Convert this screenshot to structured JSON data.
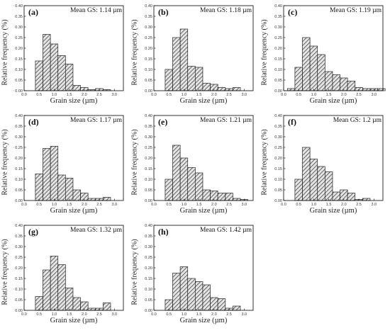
{
  "figure": {
    "ylabel": "Relative frequency (%)",
    "xlabel": "Grain size (µm)"
  },
  "colors": {
    "bar_fill": "#e4e4e4",
    "hatch": "#444444",
    "axis": "#000000"
  },
  "chart_data": [
    {
      "type": "bar",
      "panel": "(a)",
      "title": "Mean GS: 1.14 µm",
      "xlabel": "Grain size (µm)",
      "ylabel": "Relative frequency (%)",
      "x": [
        0.5,
        0.75,
        1.0,
        1.25,
        1.5,
        1.75,
        2.0,
        2.25,
        2.5,
        2.75,
        3.0,
        3.25
      ],
      "values": [
        0.14,
        0.265,
        0.22,
        0.165,
        0.125,
        0.025,
        0.015,
        0.005,
        0.01,
        0.005,
        0.0,
        0.0
      ],
      "xlim": [
        0,
        3.3
      ],
      "ylim": [
        0,
        0.4
      ],
      "xticks": [
        "0.0",
        "0.5",
        "1.0",
        "1.5",
        "2.0",
        "2.5",
        "3.0"
      ],
      "yticks": [
        "0.00",
        "0.05",
        "0.10",
        "0.15",
        "0.20",
        "0.25",
        "0.30",
        "0.35",
        "0.40"
      ]
    },
    {
      "type": "bar",
      "panel": "(b)",
      "title": "Mean GS: 1.18 µm",
      "xlabel": "Grain size (µm)",
      "ylabel": "Relative frequency (%)",
      "x": [
        0.5,
        0.75,
        1.0,
        1.25,
        1.5,
        1.75,
        2.0,
        2.25,
        2.5,
        2.75,
        3.0,
        3.25
      ],
      "values": [
        0.1,
        0.25,
        0.29,
        0.115,
        0.11,
        0.035,
        0.03,
        0.015,
        0.01,
        0.015,
        0.0,
        0.0
      ],
      "xlim": [
        0,
        3.3
      ],
      "ylim": [
        0,
        0.4
      ],
      "xticks": [
        "0.0",
        "0.5",
        "1.0",
        "1.5",
        "2.0",
        "2.5",
        "3.0"
      ],
      "yticks": [
        "0.00",
        "0.05",
        "0.10",
        "0.15",
        "0.20",
        "0.25",
        "0.30",
        "0.35",
        "0.40"
      ]
    },
    {
      "type": "bar",
      "panel": "(c)",
      "title": "Mean GS: 1.19 µm",
      "xlabel": "Grain size (µm)",
      "ylabel": "Relative frequency (%)",
      "x": [
        0.25,
        0.5,
        0.75,
        1.0,
        1.25,
        1.5,
        1.75,
        2.0,
        2.25,
        2.5,
        2.75,
        3.0,
        3.25
      ],
      "values": [
        0.01,
        0.11,
        0.25,
        0.21,
        0.17,
        0.09,
        0.075,
        0.06,
        0.045,
        0.015,
        0.01,
        0.01,
        0.01
      ],
      "xlim": [
        0,
        3.3
      ],
      "ylim": [
        0,
        0.4
      ],
      "xticks": [
        "0.0",
        "0.5",
        "1.0",
        "1.5",
        "2.0",
        "2.5",
        "3.0"
      ],
      "yticks": [
        "0.00",
        "0.05",
        "0.10",
        "0.15",
        "0.20",
        "0.25",
        "0.30",
        "0.35",
        "0.40"
      ]
    },
    {
      "type": "bar",
      "panel": "(d)",
      "title": "Mean GS: 1.17 µm",
      "xlabel": "Grain size (µm)",
      "ylabel": "Relative frequency (%)",
      "x": [
        0.5,
        0.75,
        1.0,
        1.25,
        1.5,
        1.75,
        2.0,
        2.25,
        2.5,
        2.75,
        3.0,
        3.25
      ],
      "values": [
        0.125,
        0.245,
        0.255,
        0.12,
        0.105,
        0.05,
        0.035,
        0.01,
        0.01,
        0.015,
        0.0,
        0.0
      ],
      "xlim": [
        0,
        3.3
      ],
      "ylim": [
        0,
        0.4
      ],
      "xticks": [
        "0.0",
        "0.5",
        "1.0",
        "1.5",
        "2.0",
        "2.5",
        "3.0"
      ],
      "yticks": [
        "0.00",
        "0.05",
        "0.10",
        "0.15",
        "0.20",
        "0.25",
        "0.30",
        "0.35",
        "0.40"
      ]
    },
    {
      "type": "bar",
      "panel": "(e)",
      "title": "Mean GS: 1.21 µm",
      "xlabel": "Grain size (µm)",
      "ylabel": "Relative frequency (%)",
      "x": [
        0.5,
        0.75,
        1.0,
        1.25,
        1.5,
        1.75,
        2.0,
        2.25,
        2.5,
        2.75,
        3.0,
        3.25
      ],
      "values": [
        0.1,
        0.26,
        0.2,
        0.155,
        0.13,
        0.05,
        0.045,
        0.035,
        0.035,
        0.01,
        0.005,
        0.0
      ],
      "xlim": [
        0,
        3.3
      ],
      "ylim": [
        0,
        0.4
      ],
      "xticks": [
        "0.0",
        "0.5",
        "1.0",
        "1.5",
        "2.0",
        "2.5",
        "3.0"
      ],
      "yticks": [
        "0.00",
        "0.05",
        "0.10",
        "0.15",
        "0.20",
        "0.25",
        "0.30",
        "0.35",
        "0.40"
      ]
    },
    {
      "type": "bar",
      "panel": "(f)",
      "title": "Mean GS: 1.2 µm",
      "xlabel": "Grain size (µm)",
      "ylabel": "Relative frequency (%)",
      "x": [
        0.5,
        0.75,
        1.0,
        1.25,
        1.5,
        1.75,
        2.0,
        2.25,
        2.5,
        2.75,
        3.0,
        3.25
      ],
      "values": [
        0.1,
        0.25,
        0.195,
        0.16,
        0.135,
        0.04,
        0.05,
        0.035,
        0.005,
        0.01,
        0.0,
        0.0
      ],
      "xlim": [
        0,
        3.3
      ],
      "ylim": [
        0,
        0.4
      ],
      "xticks": [
        "0.0",
        "0.5",
        "1.0",
        "1.5",
        "2.0",
        "2.5",
        "3.0"
      ],
      "yticks": [
        "0.00",
        "0.05",
        "0.10",
        "0.15",
        "0.20",
        "0.25",
        "0.30",
        "0.35",
        "0.40"
      ]
    },
    {
      "type": "bar",
      "panel": "(g)",
      "title": "Mean GS: 1.32 µm",
      "xlabel": "Grain size (µm)",
      "ylabel": "Relative frequency (%)",
      "x": [
        0.5,
        0.75,
        1.0,
        1.25,
        1.5,
        1.75,
        2.0,
        2.25,
        2.5,
        2.75,
        3.0,
        3.25
      ],
      "values": [
        0.065,
        0.19,
        0.255,
        0.215,
        0.105,
        0.06,
        0.04,
        0.01,
        0.01,
        0.035,
        0.0,
        0.0
      ],
      "xlim": [
        0,
        3.3
      ],
      "ylim": [
        0,
        0.4
      ],
      "xticks": [
        "0.0",
        "0.5",
        "1.0",
        "1.5",
        "2.0",
        "2.5",
        "3.0"
      ],
      "yticks": [
        "0.00",
        "0.05",
        "0.10",
        "0.15",
        "0.20",
        "0.25",
        "0.30",
        "0.35",
        "0.40"
      ]
    },
    {
      "type": "bar",
      "panel": "(h)",
      "title": "Mean GS: 1.42 µm",
      "xlabel": "Grain size (µm)",
      "ylabel": "Relative frequency (%)",
      "x": [
        0.5,
        0.75,
        1.0,
        1.25,
        1.5,
        1.75,
        2.0,
        2.25,
        2.5,
        2.75,
        3.0,
        3.25
      ],
      "values": [
        0.05,
        0.175,
        0.205,
        0.15,
        0.135,
        0.12,
        0.06,
        0.055,
        0.01,
        0.02,
        0.0,
        0.0
      ],
      "xlim": [
        0,
        3.3
      ],
      "ylim": [
        0,
        0.4
      ],
      "xticks": [
        "0.0",
        "0.5",
        "1.0",
        "1.5",
        "2.0",
        "2.5",
        "3.0"
      ],
      "yticks": [
        "0.00",
        "0.05",
        "0.10",
        "0.15",
        "0.20",
        "0.25",
        "0.30",
        "0.35",
        "0.40"
      ]
    }
  ]
}
